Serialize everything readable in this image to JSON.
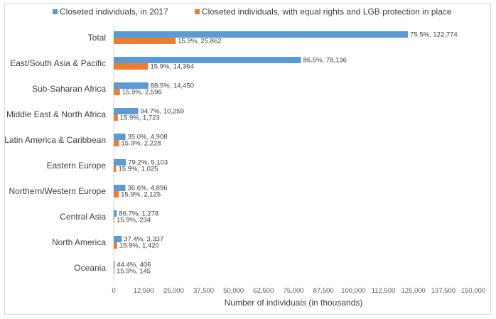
{
  "colors": {
    "series_2017": "#5b9bd5",
    "series_equal": "#ed7d31",
    "axis": "#d9d9d9"
  },
  "chart_data": {
    "type": "bar",
    "orientation": "horizontal",
    "title": "",
    "xlabel": "Number of individuals (in thousands)",
    "ylabel": "",
    "xlim": [
      0,
      150000
    ],
    "x_ticks": [
      "0",
      "12,500",
      "25,000",
      "37,500",
      "50,000",
      "62,500",
      "75,000",
      "87,500",
      "100,000",
      "112,500",
      "125,000",
      "137,500",
      "150,000"
    ],
    "grid": false,
    "legend_position": "top",
    "categories": [
      "Total",
      "East/South Asia & Pacific",
      "Sub-Saharan Africa",
      "Middle East & North Africa",
      "Latin America & Caribbean",
      "Eastern Europe",
      "Northern/Western Europe",
      "Central Asia",
      "North America",
      "Oceania"
    ],
    "series": [
      {
        "name": "Closeted individuals, in 2017",
        "values": [
          122774,
          78136,
          14450,
          10259,
          4908,
          5103,
          4896,
          1278,
          3337,
          406
        ],
        "labels": [
          "75.5%, 122,774",
          "86.5%, 78,136",
          "88.5%, 14,450",
          "94.7%, 10,259",
          "35.0%, 4,908",
          "79.2%, 5,103",
          "36.6%, 4,896",
          "86.7%, 1,278",
          "37.4%, 3,337",
          "44.4%, 406"
        ]
      },
      {
        "name": "Closeted individuals, with equal rights and LGB protection in place",
        "values": [
          25862,
          14364,
          2596,
          1723,
          2228,
          1025,
          2125,
          234,
          1420,
          145
        ],
        "labels": [
          "15.9%, 25,862",
          "15.9%, 14,364",
          "15.9%, 2,596",
          "15.9%, 1,723",
          "15.9%, 2,228",
          "15.9%, 1,025",
          "15.9%, 2,125",
          "15.9%, 234",
          "15.9%, 1,420",
          "15.9%, 145"
        ]
      }
    ]
  }
}
